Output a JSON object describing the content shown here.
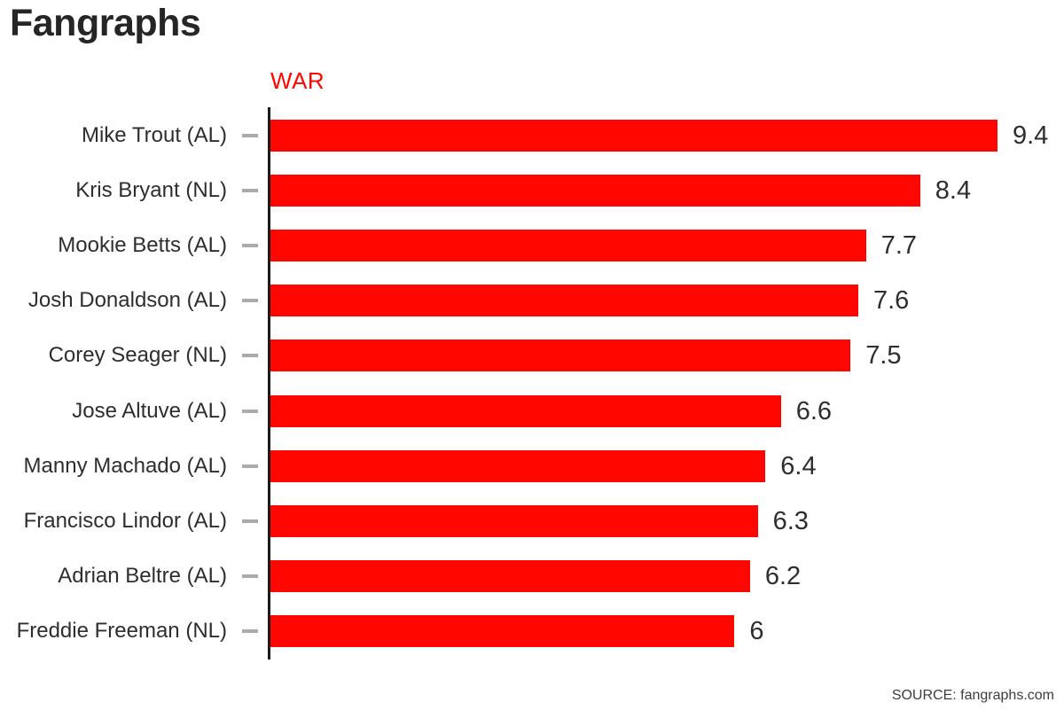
{
  "colors": {
    "accent": "#ff0600",
    "axis": "#1c1c1c",
    "tick": "#ababab",
    "text": "#2e2e2e",
    "title": "#262626",
    "source": "#3d3d3d"
  },
  "chart_data": {
    "type": "bar",
    "orientation": "horizontal",
    "title": "Fangraphs",
    "xlabel": "WAR",
    "categories": [
      "Mike Trout (AL)",
      "Kris Bryant (NL)",
      "Mookie Betts (AL)",
      "Josh Donaldson (AL)",
      "Corey Seager (NL)",
      "Jose Altuve (AL)",
      "Manny Machado (AL)",
      "Francisco Lindor (AL)",
      "Adrian Beltre (AL)",
      "Freddie Freeman (NL)"
    ],
    "values": [
      9.4,
      8.4,
      7.7,
      7.6,
      7.5,
      6.6,
      6.4,
      6.3,
      6.2,
      6
    ],
    "value_labels": [
      "9.4",
      "8.4",
      "7.7",
      "7.6",
      "7.5",
      "6.6",
      "6.4",
      "6.3",
      "6.2",
      "6"
    ],
    "bar_color": "#ff0600",
    "xlim": [
      0,
      9.4
    ],
    "grid": false,
    "legend": false,
    "source": "SOURCE: fangraphs.com"
  }
}
